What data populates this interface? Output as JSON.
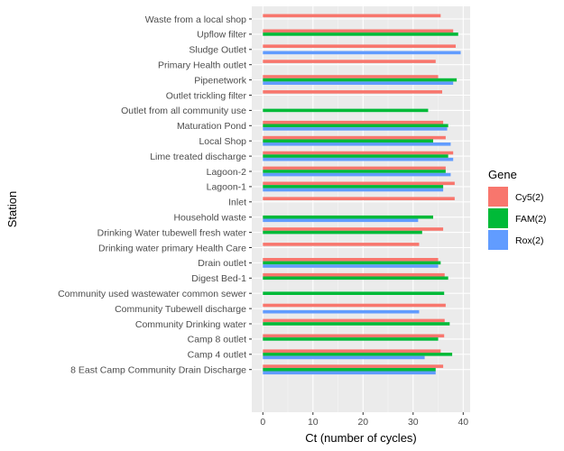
{
  "chart_data": {
    "type": "bar",
    "orientation": "horizontal",
    "xlabel": "Ct (number of cycles)",
    "ylabel": "Station",
    "xlim": [
      0,
      41.2
    ],
    "xticks": [
      0,
      10,
      20,
      30,
      40
    ],
    "grid": true,
    "legend": {
      "title": "Gene",
      "placement": "right"
    },
    "categories": [
      "Waste from a local shop",
      "Upflow filter",
      "Sludge Outlet",
      "Primary Health outlet",
      "Pipenetwork",
      "Outlet trickling filter",
      "Outlet from all community use",
      "Maturation Pond",
      "Local Shop",
      "Lime treated discharge",
      "Lagoon-2",
      "Lagoon-1",
      "Inlet",
      "Household waste",
      "Drinking Water tubewell fresh water",
      "Drinking water primary Health Care",
      "Drain outlet",
      "Digest Bed-1",
      "Community used wastewater common sewer",
      "Community Tubewell discharge",
      "Community Drinking water",
      "Camp 8 outlet",
      "Camp 4 outlet",
      "8 East Camp Community Drain Discharge"
    ],
    "series": [
      {
        "name": "Cy5(2)",
        "color": "#F8766D",
        "values": [
          35.5,
          38.0,
          38.5,
          34.5,
          35.0,
          35.8,
          null,
          36.0,
          36.5,
          38.0,
          36.5,
          38.3,
          38.3,
          null,
          36.0,
          31.2,
          35.0,
          36.3,
          null,
          36.5,
          36.3,
          36.2,
          35.5,
          36.0
        ]
      },
      {
        "name": "FAM(2)",
        "color": "#00BA38",
        "values": [
          null,
          39.0,
          null,
          null,
          38.7,
          null,
          33.0,
          37.0,
          34.0,
          37.0,
          36.5,
          36.0,
          null,
          34.0,
          31.8,
          null,
          35.5,
          37.0,
          36.2,
          null,
          37.3,
          35.0,
          37.8,
          34.5
        ]
      },
      {
        "name": "Rox(2)",
        "color": "#619CFF",
        "values": [
          null,
          null,
          39.5,
          null,
          38.0,
          null,
          null,
          36.8,
          37.5,
          38.0,
          37.5,
          36.0,
          null,
          31.0,
          null,
          null,
          35.0,
          null,
          null,
          31.2,
          null,
          null,
          32.3,
          34.5
        ]
      }
    ]
  }
}
